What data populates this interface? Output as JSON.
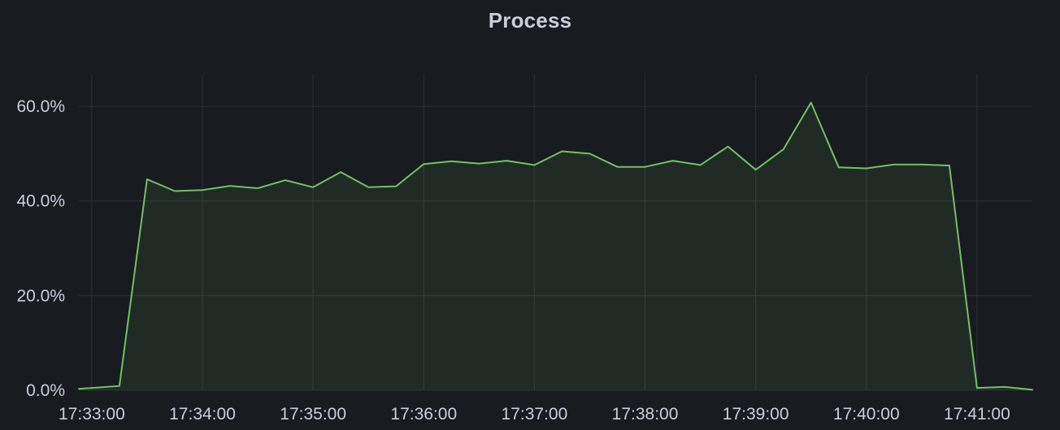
{
  "panel": {
    "title": "Process"
  },
  "chart_data": {
    "type": "area",
    "title": "Process",
    "xlabel": "",
    "ylabel": "",
    "x_tick_labels": [
      "17:33:00",
      "17:34:00",
      "17:35:00",
      "17:36:00",
      "17:37:00",
      "17:38:00",
      "17:39:00",
      "17:40:00",
      "17:41:00"
    ],
    "y_tick_labels": [
      "0.0%",
      "20.0%",
      "40.0%",
      "60.0%"
    ],
    "y_ticks": [
      0,
      20,
      40,
      60
    ],
    "xlim": [
      "17:32:53",
      "17:41:30"
    ],
    "ylim": [
      0,
      66.7
    ],
    "grid": true,
    "colors": {
      "line": "#73bf69",
      "fill": "#73bf69",
      "grid": "#2c3036",
      "background": "#181b1f",
      "text": "#ccccdc"
    },
    "series": [
      {
        "x": [
          "17:32:53",
          "17:33:00",
          "17:33:15",
          "17:33:30",
          "17:33:45",
          "17:34:00",
          "17:34:15",
          "17:34:30",
          "17:34:45",
          "17:35:00",
          "17:35:15",
          "17:35:30",
          "17:35:45",
          "17:36:00",
          "17:36:15",
          "17:36:30",
          "17:36:45",
          "17:37:00",
          "17:37:15",
          "17:37:30",
          "17:37:45",
          "17:38:00",
          "17:38:15",
          "17:38:30",
          "17:38:45",
          "17:39:00",
          "17:39:15",
          "17:39:30",
          "17:39:45",
          "17:40:00",
          "17:40:15",
          "17:40:30",
          "17:40:45",
          "17:41:00",
          "17:41:15",
          "17:41:30"
        ],
        "values": [
          0.3,
          0.5,
          0.9,
          44.6,
          42.1,
          42.3,
          43.2,
          42.7,
          44.4,
          42.9,
          46.1,
          42.9,
          43.1,
          47.8,
          48.4,
          47.9,
          48.5,
          47.6,
          50.5,
          50.0,
          47.2,
          47.2,
          48.5,
          47.6,
          51.5,
          46.6,
          50.9,
          60.8,
          47.1,
          46.9,
          47.7,
          47.7,
          47.5,
          0.5,
          0.7,
          0.1
        ]
      }
    ]
  }
}
